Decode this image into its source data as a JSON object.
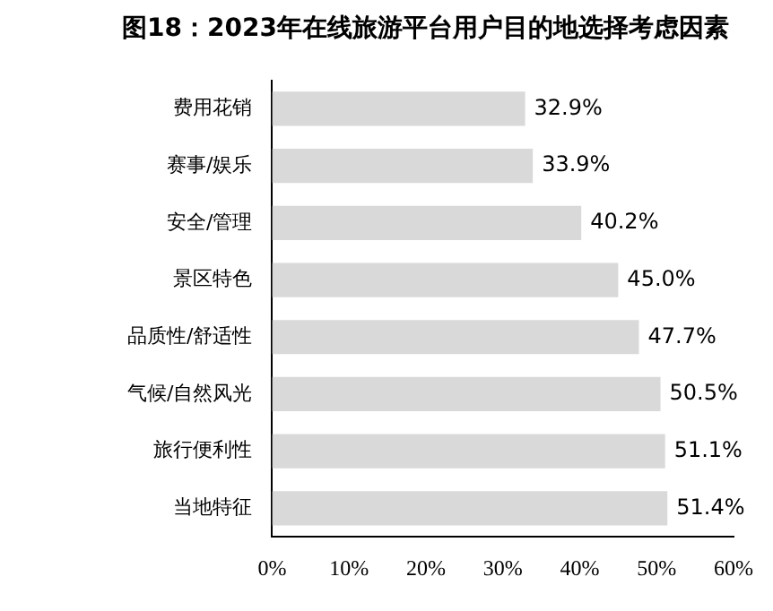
{
  "chart_data": {
    "type": "bar",
    "orientation": "horizontal",
    "title": "图18：2023年在线旅游平台用户目的地选择考虑因素",
    "categories": [
      "费用花销",
      "赛事/娱乐",
      "安全/管理",
      "景区特色",
      "品质性/舒适性",
      "气候/自然风光",
      "旅行便利性",
      "当地特征"
    ],
    "values": [
      32.9,
      33.9,
      40.2,
      45.0,
      47.7,
      50.5,
      51.1,
      51.4
    ],
    "value_labels": [
      "32.9%",
      "33.9%",
      "40.2%",
      "45.0%",
      "47.7%",
      "50.5%",
      "51.1%",
      "51.4%"
    ],
    "color": "#d9d9d9",
    "xlim": [
      0,
      60
    ],
    "xticks": [
      {
        "value": 0,
        "label": "0%"
      },
      {
        "value": 10,
        "label": "10%"
      },
      {
        "value": 20,
        "label": "20%"
      },
      {
        "value": 30,
        "label": "30%"
      },
      {
        "value": 40,
        "label": "40%"
      },
      {
        "value": 50,
        "label": "50%"
      },
      {
        "value": 60,
        "label": "60%"
      }
    ],
    "grid": false,
    "legend": false
  }
}
